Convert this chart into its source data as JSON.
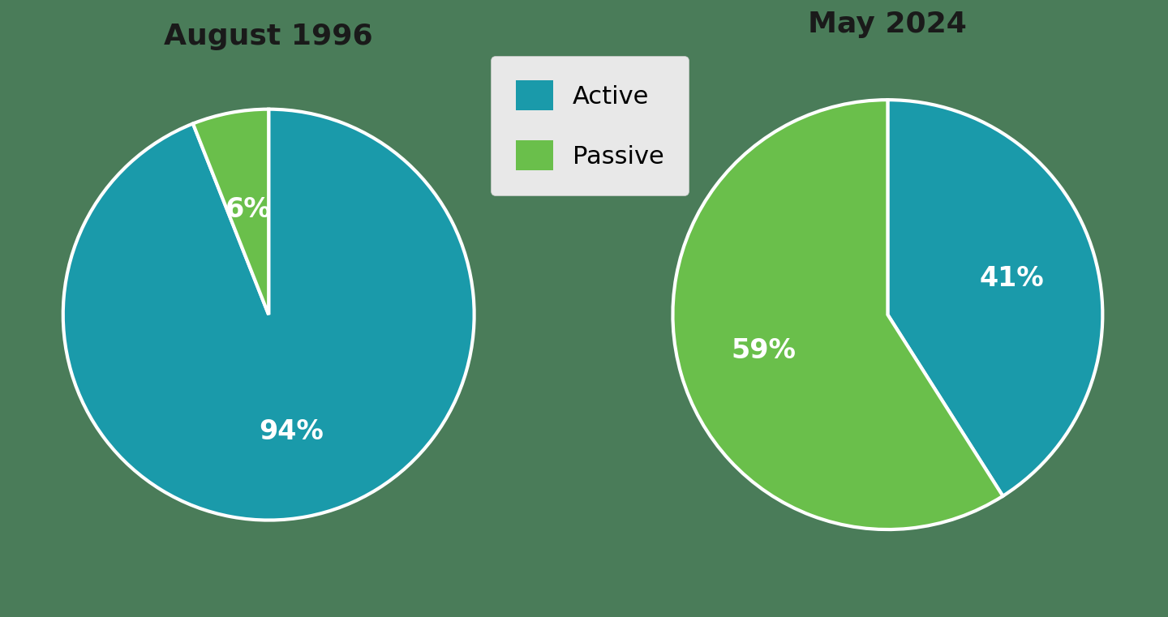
{
  "background_color": "#4a7c59",
  "pie1_title": "August 1996",
  "pie2_title": "May 2024",
  "active_color": "#1a9aaa",
  "passive_color": "#6abf4b",
  "wedge_edge_color": "#ffffff",
  "pie1_values": [
    94,
    6
  ],
  "pie2_values": [
    41,
    59
  ],
  "labels": [
    "Active",
    "Passive"
  ],
  "pie1_pct_labels": [
    "94%",
    "6%"
  ],
  "pie2_pct_labels": [
    "41%",
    "59%"
  ],
  "title_fontsize": 26,
  "pct_fontsize": 24,
  "legend_fontsize": 22,
  "title_fontweight": "bold",
  "legend_bg": "#e8e8e8",
  "legend_edge": "#cccccc",
  "text_color": "#1a1a1a"
}
